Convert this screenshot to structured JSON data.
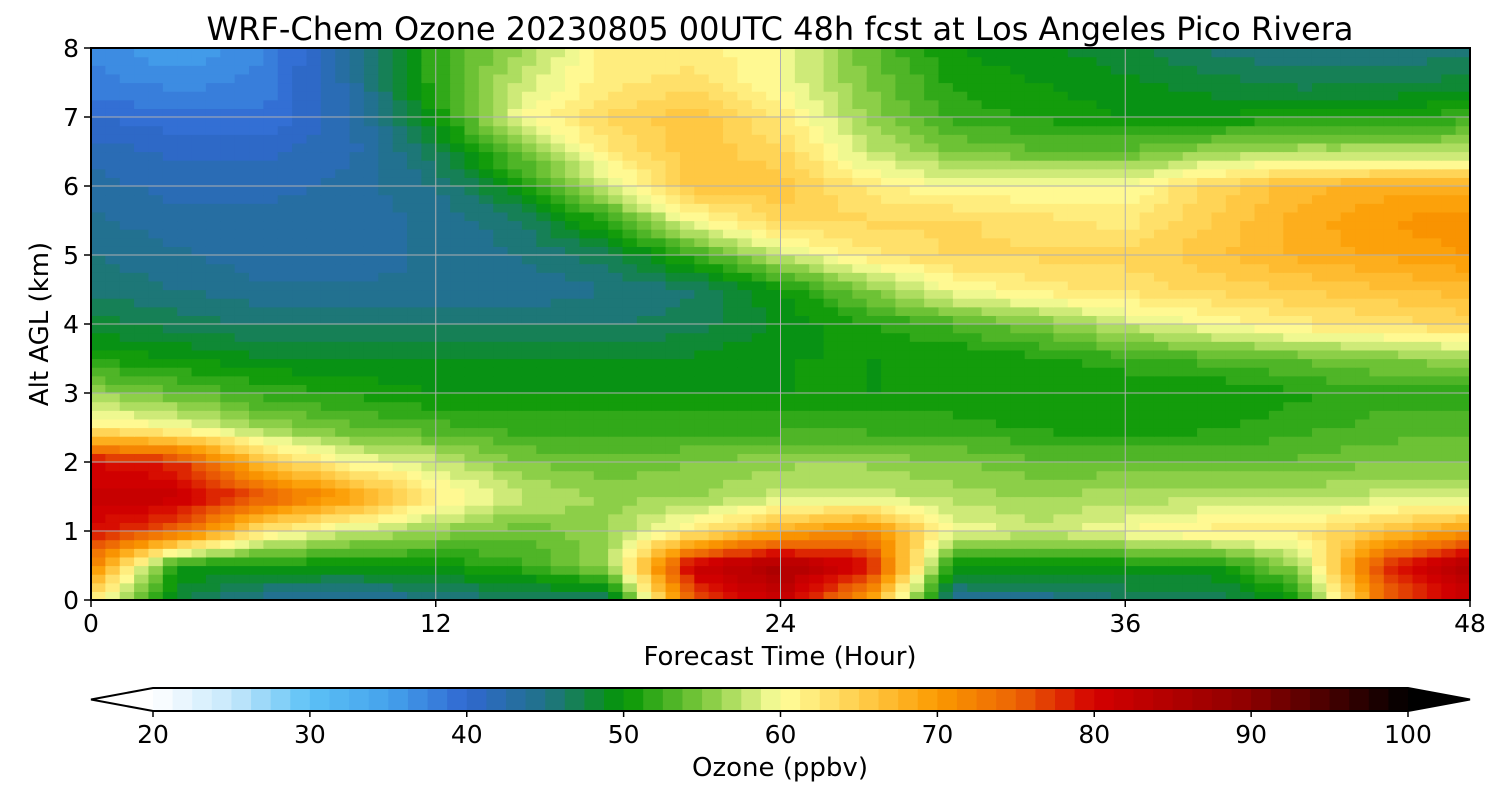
{
  "chart_data": {
    "type": "heatmap",
    "title": "WRF-Chem Ozone  20230805 00UTC 48h fcst at Los Angeles Pico Rivera",
    "xlabel": "Forecast Time (Hour)",
    "ylabel": "Alt AGL (km)",
    "xlim": [
      0,
      48
    ],
    "ylim": [
      0,
      8
    ],
    "x_ticks": [
      0,
      12,
      24,
      36,
      48
    ],
    "y_ticks": [
      0,
      1,
      2,
      3,
      4,
      5,
      6,
      7,
      8
    ],
    "grid": true,
    "x": [
      0,
      3,
      6,
      9,
      12,
      15,
      18,
      21,
      24,
      27,
      30,
      33,
      36,
      39,
      42,
      45,
      48
    ],
    "y": [
      0,
      0.5,
      1,
      1.5,
      2,
      2.5,
      3,
      3.5,
      4,
      4.5,
      5,
      5.5,
      6,
      6.5,
      7,
      7.5,
      8
    ],
    "z": [
      [
        62,
        48,
        44,
        43,
        45,
        46,
        46,
        76,
        82,
        70,
        44,
        44,
        46,
        46,
        50,
        74,
        82
      ],
      [
        72,
        50,
        50,
        50,
        50,
        52,
        56,
        82,
        86,
        80,
        50,
        50,
        50,
        50,
        56,
        78,
        85
      ],
      [
        80,
        75,
        62,
        58,
        56,
        54,
        56,
        62,
        68,
        72,
        60,
        58,
        60,
        62,
        62,
        66,
        70
      ],
      [
        82,
        82,
        76,
        70,
        62,
        58,
        56,
        56,
        58,
        58,
        57,
        56,
        57,
        57,
        57,
        58,
        58
      ],
      [
        80,
        78,
        66,
        60,
        58,
        55,
        54,
        55,
        56,
        56,
        55,
        54,
        54,
        54,
        54,
        55,
        55
      ],
      [
        62,
        60,
        56,
        54,
        53,
        52,
        52,
        52,
        52,
        52,
        52,
        51,
        50,
        51,
        52,
        53,
        53
      ],
      [
        56,
        54,
        52,
        51,
        50,
        50,
        50,
        50,
        50,
        50,
        50,
        50,
        50,
        50,
        51,
        52,
        52
      ],
      [
        51,
        50,
        49,
        49,
        49,
        49,
        49,
        49,
        50,
        50,
        50,
        51,
        52,
        53,
        54,
        55,
        56
      ],
      [
        48,
        47,
        46,
        46,
        46,
        46,
        46,
        47,
        49,
        51,
        53,
        55,
        58,
        60,
        62,
        63,
        64
      ],
      [
        46,
        45,
        44,
        44,
        44,
        44,
        45,
        46,
        50,
        55,
        60,
        62,
        63,
        64,
        65,
        66,
        67
      ],
      [
        45,
        44,
        43,
        43,
        44,
        45,
        47,
        52,
        58,
        62,
        64,
        64,
        64,
        66,
        68,
        69,
        70
      ],
      [
        44,
        43,
        43,
        43,
        44,
        46,
        52,
        60,
        64,
        64,
        64,
        63,
        62,
        65,
        68,
        70,
        71
      ],
      [
        43,
        42,
        42,
        43,
        45,
        50,
        58,
        66,
        66,
        62,
        60,
        60,
        60,
        64,
        67,
        68,
        68
      ],
      [
        42,
        41,
        41,
        42,
        47,
        55,
        62,
        66,
        64,
        58,
        55,
        54,
        54,
        56,
        57,
        57,
        57
      ],
      [
        40,
        39,
        39,
        42,
        50,
        60,
        64,
        66,
        62,
        56,
        52,
        51,
        50,
        50,
        51,
        51,
        52
      ],
      [
        38,
        37,
        38,
        43,
        52,
        58,
        62,
        63,
        60,
        55,
        51,
        50,
        49,
        48,
        47,
        47,
        48
      ],
      [
        37,
        35,
        37,
        44,
        52,
        56,
        62,
        62,
        60,
        54,
        50,
        49,
        48,
        46,
        45,
        45,
        46
      ]
    ],
    "colorbar": {
      "label": "Ozone  (ppbv)",
      "min": 20,
      "max": 100,
      "ticks": [
        20,
        30,
        40,
        50,
        60,
        70,
        80,
        90,
        100
      ],
      "extend": "both",
      "colors": [
        {
          "v": 20,
          "c": "#ffffff"
        },
        {
          "v": 25,
          "c": "#c6e8fb"
        },
        {
          "v": 30,
          "c": "#5cc1f6"
        },
        {
          "v": 35,
          "c": "#45a2ec"
        },
        {
          "v": 40,
          "c": "#3068d0"
        },
        {
          "v": 45,
          "c": "#207287"
        },
        {
          "v": 50,
          "c": "#049604"
        },
        {
          "v": 55,
          "c": "#7cc83c"
        },
        {
          "v": 60,
          "c": "#ffff9c"
        },
        {
          "v": 65,
          "c": "#ffce4c"
        },
        {
          "v": 70,
          "c": "#fb9a00"
        },
        {
          "v": 75,
          "c": "#ec6404"
        },
        {
          "v": 80,
          "c": "#d40000"
        },
        {
          "v": 90,
          "c": "#8c0000"
        },
        {
          "v": 100,
          "c": "#000000"
        }
      ]
    }
  }
}
